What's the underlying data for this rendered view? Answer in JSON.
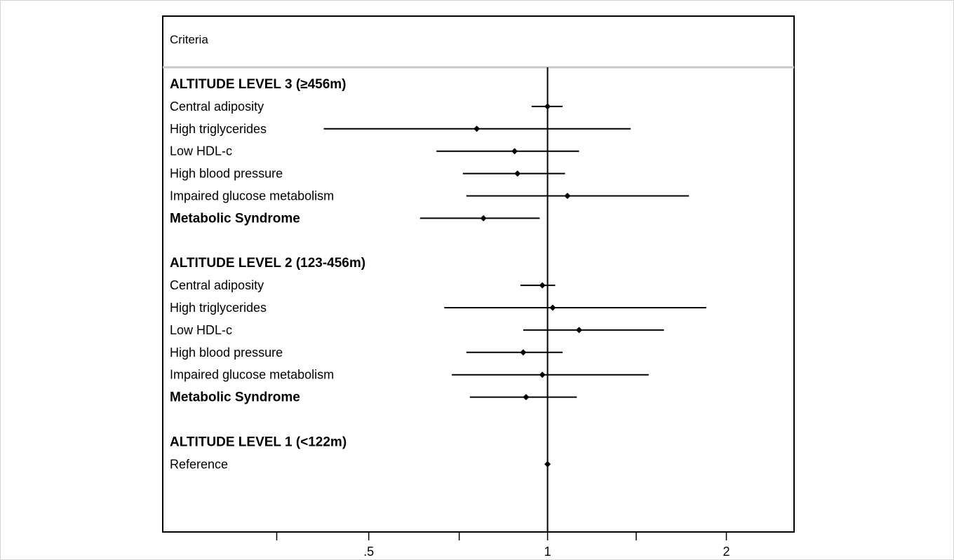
{
  "header": {
    "label": "Criteria"
  },
  "chart_data": {
    "type": "forest",
    "x_scale": "log",
    "reference_line": 1,
    "xlim": [
      0.225,
      2.6
    ],
    "x_ticks": [
      {
        "value": 0.35,
        "label": ""
      },
      {
        "value": 0.5,
        "label": ".5"
      },
      {
        "value": 0.71,
        "label": ""
      },
      {
        "value": 1,
        "label": "1"
      },
      {
        "value": 1.41,
        "label": ""
      },
      {
        "value": 2,
        "label": "2"
      }
    ],
    "rows": [
      {
        "label": "ALTITUDE LEVEL 3 (≥456m)",
        "bold": true,
        "type": "header"
      },
      {
        "label": "Central adiposity",
        "estimate": 1.0,
        "ci": [
          0.94,
          1.06
        ]
      },
      {
        "label": "High triglycerides",
        "estimate": 0.76,
        "ci": [
          0.42,
          1.38
        ]
      },
      {
        "label": "Low HDL-c",
        "estimate": 0.88,
        "ci": [
          0.65,
          1.13
        ]
      },
      {
        "label": "High blood pressure",
        "estimate": 0.89,
        "ci": [
          0.72,
          1.07
        ]
      },
      {
        "label": "Impaired glucose metabolism",
        "estimate": 1.08,
        "ci": [
          0.73,
          1.73
        ]
      },
      {
        "label": "Metabolic Syndrome",
        "bold": true,
        "estimate": 0.78,
        "ci": [
          0.61,
          0.97
        ]
      },
      {
        "type": "spacer"
      },
      {
        "label": "ALTITUDE LEVEL 2 (123-456m)",
        "bold": true,
        "type": "header"
      },
      {
        "label": "Central adiposity",
        "estimate": 0.98,
        "ci": [
          0.9,
          1.03
        ]
      },
      {
        "label": "High triglycerides",
        "estimate": 1.02,
        "ci": [
          0.67,
          1.85
        ]
      },
      {
        "label": "Low HDL-c",
        "estimate": 1.13,
        "ci": [
          0.91,
          1.57
        ]
      },
      {
        "label": "High blood pressure",
        "estimate": 0.91,
        "ci": [
          0.73,
          1.06
        ]
      },
      {
        "label": "Impaired glucose metabolism",
        "estimate": 0.98,
        "ci": [
          0.69,
          1.48
        ]
      },
      {
        "label": "Metabolic Syndrome",
        "bold": true,
        "estimate": 0.92,
        "ci": [
          0.74,
          1.12
        ]
      },
      {
        "type": "spacer"
      },
      {
        "label": "ALTITUDE LEVEL 1 (<122m)",
        "bold": true,
        "type": "header"
      },
      {
        "label": "Reference",
        "estimate": 1.0,
        "ci": [
          1.0,
          1.0
        ]
      }
    ]
  }
}
